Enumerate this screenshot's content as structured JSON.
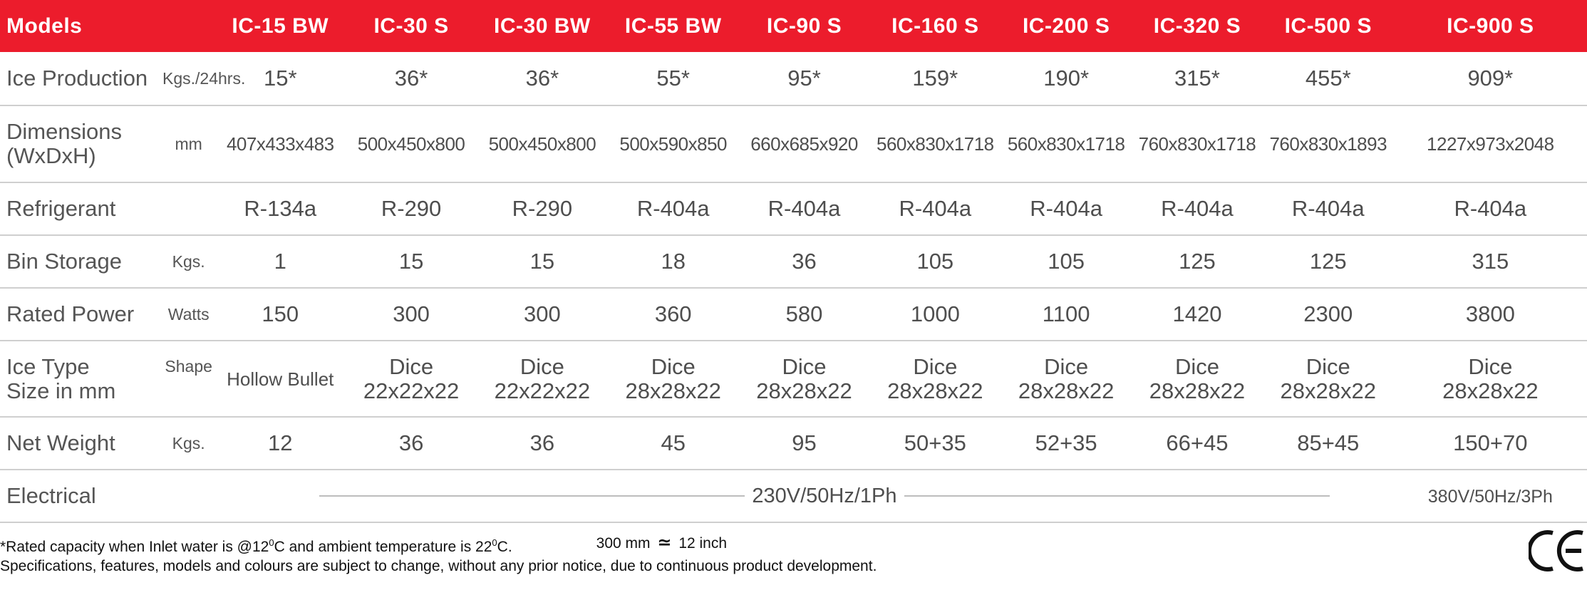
{
  "header": {
    "models_label": "Models",
    "models": [
      "IC-15 BW",
      "IC-30 S",
      "IC-30 BW",
      "IC-55 BW",
      "IC-90 S",
      "IC-160 S",
      "IC-200 S",
      "IC-320 S",
      "IC-500 S",
      "IC-900 S"
    ]
  },
  "rows": {
    "ice_production": {
      "label": "Ice Production",
      "unit": "Kgs./24hrs.",
      "values": [
        "15*",
        "36*",
        "36*",
        "55*",
        "95*",
        "159*",
        "190*",
        "315*",
        "455*",
        "909*"
      ]
    },
    "dimensions": {
      "label_line1": "Dimensions",
      "label_line2": "(WxDxH)",
      "unit": "mm",
      "values": [
        "407x433x483",
        "500x450x800",
        "500x450x800",
        "500x590x850",
        "660x685x920",
        "560x830x1718",
        "560x830x1718",
        "760x830x1718",
        "760x830x1893",
        "1227x973x2048"
      ]
    },
    "refrigerant": {
      "label": "Refrigerant",
      "values": [
        "R-134a",
        "R-290",
        "R-290",
        "R-404a",
        "R-404a",
        "R-404a",
        "R-404a",
        "R-404a",
        "R-404a",
        "R-404a"
      ]
    },
    "bin_storage": {
      "label": "Bin Storage",
      "unit": "Kgs.",
      "values": [
        "1",
        "15",
        "15",
        "18",
        "36",
        "105",
        "105",
        "125",
        "125",
        "315"
      ]
    },
    "rated_power": {
      "label": "Rated Power",
      "unit": "Watts",
      "values": [
        "150",
        "300",
        "300",
        "360",
        "580",
        "1000",
        "1100",
        "1420",
        "2300",
        "3800"
      ]
    },
    "ice_type": {
      "label_line1": "Ice Type",
      "label_line2": "Size in mm",
      "unit": "Shape",
      "first": "Hollow Bullet",
      "items": [
        {
          "type": "Dice",
          "size": "22x22x22"
        },
        {
          "type": "Dice",
          "size": "22x22x22"
        },
        {
          "type": "Dice",
          "size": "28x28x22"
        },
        {
          "type": "Dice",
          "size": "28x28x22"
        },
        {
          "type": "Dice",
          "size": "28x28x22"
        },
        {
          "type": "Dice",
          "size": "28x28x22"
        },
        {
          "type": "Dice",
          "size": "28x28x22"
        },
        {
          "type": "Dice",
          "size": "28x28x22"
        },
        {
          "type": "Dice",
          "size": "28x28x22"
        }
      ]
    },
    "net_weight": {
      "label": "Net Weight",
      "unit": "Kgs.",
      "values": [
        "12",
        "36",
        "36",
        "45",
        "95",
        "50+35",
        "52+35",
        "66+45",
        "85+45",
        "150+70"
      ]
    },
    "electrical": {
      "label": "Electrical",
      "single_phase": "230V/50Hz/1Ph",
      "three_phase": "380V/50Hz/3Ph"
    }
  },
  "footer": {
    "note_prefix": "*Rated capacity when Inlet water is @12",
    "note_sup1": "0",
    "note_mid": "C and ambient temperature is 22",
    "note_sup2": "0",
    "note_suffix": "C.",
    "conversion_left": "300 mm",
    "conversion_symbol": "≃",
    "conversion_right": "12 inch",
    "disclaimer": "Specifications, features, models and colours are subject to change, without any prior notice, due to continuous product development.",
    "ce_mark": "CE"
  },
  "colors": {
    "header_bg": "#ec1c2c",
    "header_text": "#ffffff",
    "row_divider": "#cfcfcf",
    "body_text": "#4e4e4e"
  }
}
